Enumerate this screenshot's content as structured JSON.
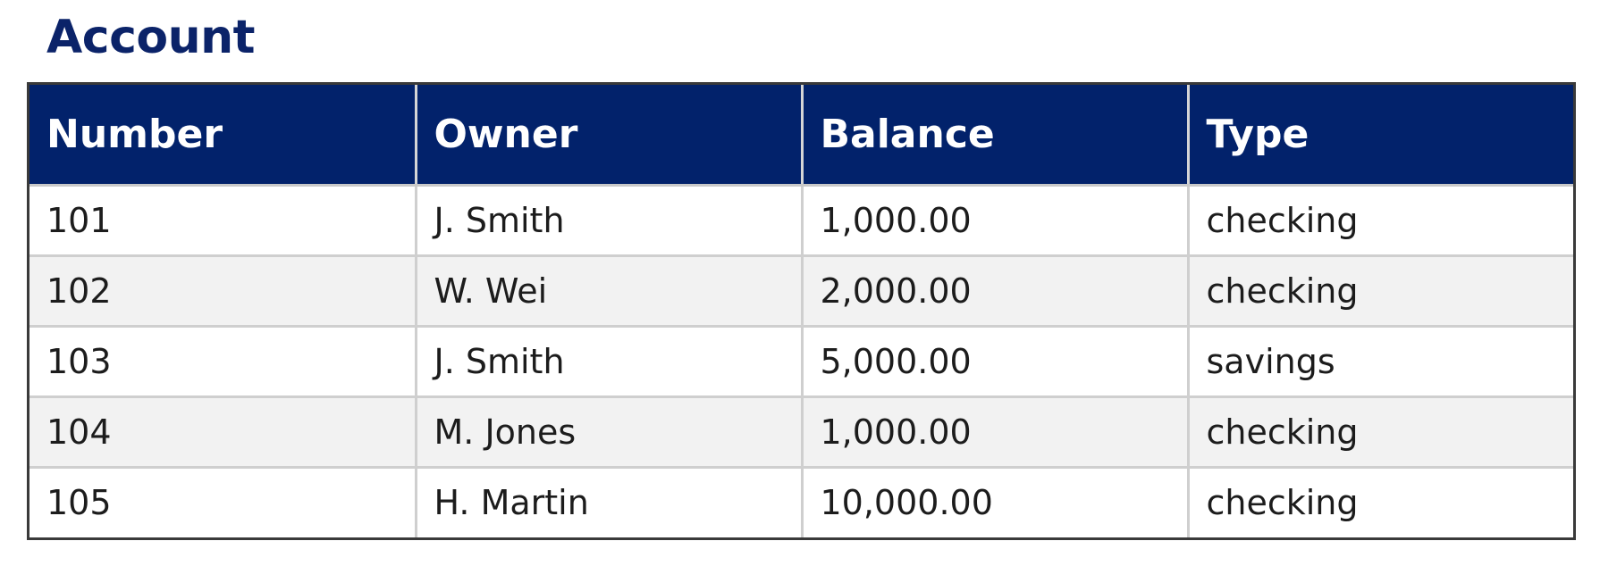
{
  "title": "Account",
  "table": {
    "headers": [
      "Number",
      "Owner",
      "Balance",
      "Type"
    ],
    "rows": [
      [
        "101",
        "J. Smith",
        "1,000.00",
        "checking"
      ],
      [
        "102",
        "W. Wei",
        "2,000.00",
        "checking"
      ],
      [
        "103",
        "J. Smith",
        "5,000.00",
        "savings"
      ],
      [
        "104",
        "M. Jones",
        "1,000.00",
        "checking"
      ],
      [
        "105",
        "H. Martin",
        "10,000.00",
        "checking"
      ]
    ]
  },
  "colors": {
    "title": "#0b2369",
    "header_bg": "#02226b",
    "header_text": "#ffffff",
    "stripe": "#f2f2f2"
  }
}
